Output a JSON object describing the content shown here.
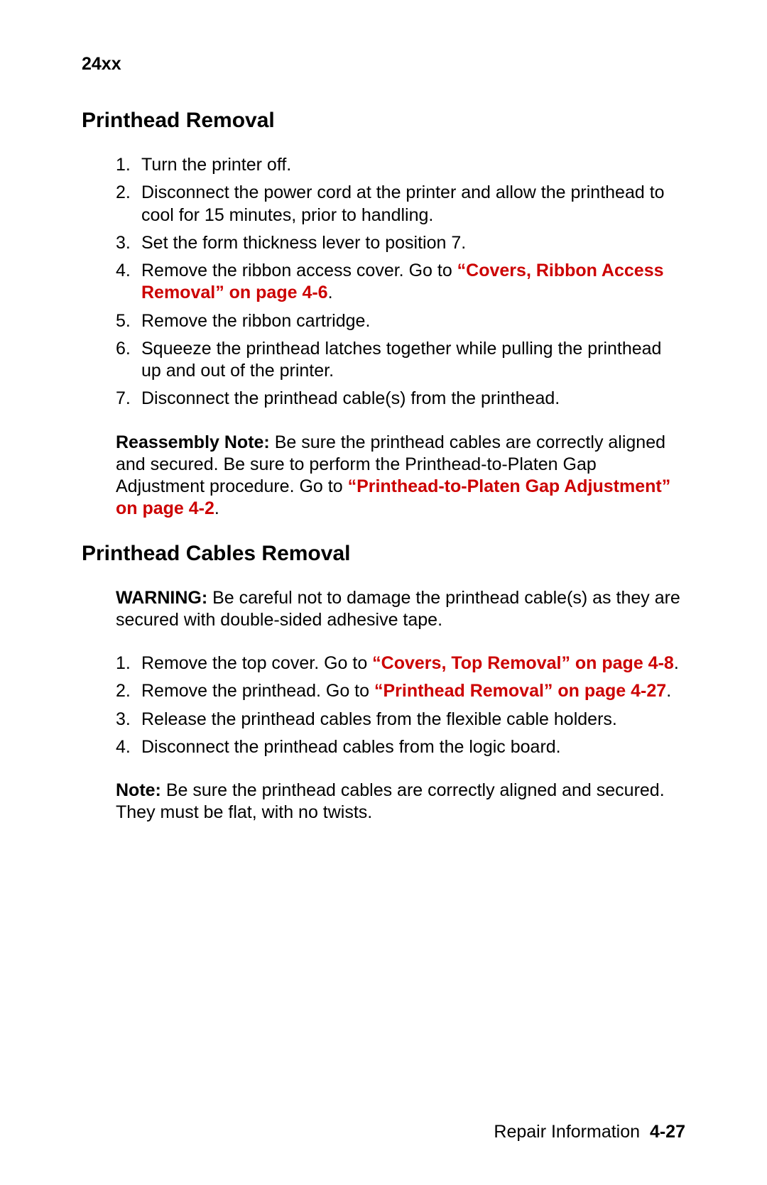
{
  "header": {
    "model": "24xx"
  },
  "section1": {
    "heading": "Printhead Removal",
    "steps": [
      {
        "n": "1.",
        "text": "Turn the printer off."
      },
      {
        "n": "2.",
        "text": "Disconnect the power cord at the printer and allow the printhead to cool for 15 minutes, prior to handling."
      },
      {
        "n": "3.",
        "text": "Set the form thickness lever to position 7."
      },
      {
        "n": "4.",
        "text_a": "Remove the ribbon access cover. Go to ",
        "link": "“Covers, Ribbon Access Removal” on page 4-6",
        "text_b": "."
      },
      {
        "n": "5.",
        "text": "Remove the ribbon cartridge."
      },
      {
        "n": "6.",
        "text": "Squeeze the printhead latches together while pulling the printhead up and out of the printer."
      },
      {
        "n": "7.",
        "text": "Disconnect the printhead cable(s) from the printhead."
      }
    ],
    "note": {
      "label": "Reassembly Note: ",
      "text_a": "Be sure the printhead cables are correctly aligned and secured. Be sure to perform the Printhead-to-Platen Gap Adjustment procedure. Go to ",
      "link": "“Printhead-to-Platen Gap Adjustment” on page 4-2",
      "text_b": "."
    }
  },
  "section2": {
    "heading": "Printhead Cables Removal",
    "warning": {
      "label": "WARNING:",
      "text": "  Be careful not to damage the printhead cable(s) as they are secured with double-sided adhesive tape."
    },
    "steps": [
      {
        "n": "1.",
        "text_a": "Remove the top cover. Go to ",
        "link": "“Covers, Top Removal” on page 4-8",
        "text_b": "."
      },
      {
        "n": "2.",
        "text_a": "Remove the printhead. Go to ",
        "link": "“Printhead Removal” on page 4-27",
        "text_b": "."
      },
      {
        "n": "3.",
        "text": "Release the printhead cables from the flexible cable holders."
      },
      {
        "n": "4.",
        "text": "Disconnect the printhead cables from the logic board."
      }
    ],
    "note": {
      "label": "Note:",
      "text": "  Be sure the printhead cables are correctly aligned and secured. They must be flat, with no twists."
    }
  },
  "footer": {
    "label": "Repair Information",
    "pagenum": "4-27"
  },
  "colors": {
    "text": "#000000",
    "link": "#cc0000",
    "background": "#ffffff"
  },
  "typography": {
    "body_fontsize": 25,
    "heading_fontsize": 30,
    "font_family": "Arial"
  }
}
